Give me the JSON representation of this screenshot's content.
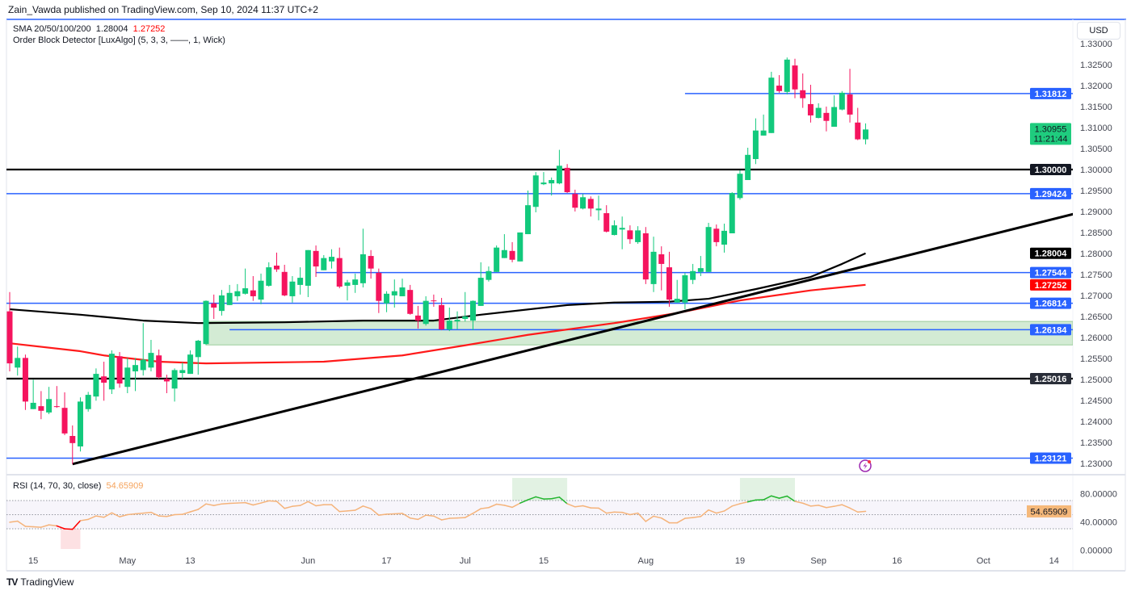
{
  "header": {
    "published": "Zain_Vawda published on TradingView.com, Sep 10, 2024 11:37 UTC+2"
  },
  "legend": {
    "sma_label": "SMA 20/50/100/200",
    "sma_value_1": "1.28004",
    "sma_value_2": "1.27252",
    "order_block_label": "Order Block Detector [LuxAlgo] (5, 3, 3, ——, 1, Wick)"
  },
  "price_axis": {
    "currency": "USD"
  },
  "rsi": {
    "label": "RSI (14, 70, 30, close)",
    "value": "54.65909"
  },
  "footer": {
    "brand": "TradingView"
  },
  "colors": {
    "up": "#12c97c",
    "down": "#f5145e",
    "level_blue": "#2962ff",
    "level_black": "#000000",
    "sma_black": "#000000",
    "sma_red": "#ff1a1a",
    "order_block": "#a5d6a7",
    "rsi_line": "#f5b37a",
    "rsi_overbought": "#22b52e",
    "rsi_oversold": "#ff0000"
  },
  "chart_data": {
    "type": "candlestick",
    "y_ticks": [
      "1.33000",
      "1.32500",
      "1.32000",
      "1.31500",
      "1.31000",
      "1.30500",
      "1.30000",
      "1.29500",
      "1.29000",
      "1.28500",
      "1.28000",
      "1.27500",
      "1.27000",
      "1.26500",
      "1.26000",
      "1.25500",
      "1.25000",
      "1.24500",
      "1.24000",
      "1.23500",
      "1.23000"
    ],
    "x_ticks": [
      {
        "bar": 3,
        "label": "15"
      },
      {
        "bar": 15,
        "label": "May"
      },
      {
        "bar": 23,
        "label": "13"
      },
      {
        "bar": 38,
        "label": "Jun"
      },
      {
        "bar": 48,
        "label": "17"
      },
      {
        "bar": 58,
        "label": "Jul"
      },
      {
        "bar": 68,
        "label": "15"
      },
      {
        "bar": 81,
        "label": "Aug"
      },
      {
        "bar": 93,
        "label": "19"
      },
      {
        "bar": 103,
        "label": "Sep"
      },
      {
        "bar": 113,
        "label": "16"
      },
      {
        "bar": 124,
        "label": "Oct"
      },
      {
        "bar": 133,
        "label": "14"
      }
    ],
    "candles_ohlc": [
      [
        1.2662,
        1.2708,
        1.2519,
        1.2538
      ],
      [
        1.2528,
        1.2578,
        1.2509,
        1.2551
      ],
      [
        1.2551,
        1.2559,
        1.2427,
        1.2447
      ],
      [
        1.2429,
        1.2499,
        1.2429,
        1.2444
      ],
      [
        1.2436,
        1.2472,
        1.2405,
        1.2425
      ],
      [
        1.2421,
        1.2482,
        1.2417,
        1.2453
      ],
      [
        1.2436,
        1.2484,
        1.2432,
        1.2434
      ],
      [
        1.2432,
        1.2469,
        1.2367,
        1.2371
      ],
      [
        1.2365,
        1.239,
        1.2298,
        1.2348
      ],
      [
        1.234,
        1.2457,
        1.2328,
        1.2447
      ],
      [
        1.2429,
        1.247,
        1.2423,
        1.2463
      ],
      [
        1.2459,
        1.2526,
        1.2449,
        1.2513
      ],
      [
        1.2507,
        1.2542,
        1.2449,
        1.2492
      ],
      [
        1.2476,
        1.2569,
        1.2465,
        1.2561
      ],
      [
        1.2555,
        1.2565,
        1.248,
        1.249
      ],
      [
        1.2482,
        1.2551,
        1.2467,
        1.2528
      ],
      [
        1.2519,
        1.2551,
        1.2472,
        1.2534
      ],
      [
        1.2522,
        1.2634,
        1.2509,
        1.2547
      ],
      [
        1.2528,
        1.2594,
        1.2519,
        1.2563
      ],
      [
        1.2557,
        1.2571,
        1.2501,
        1.2505
      ],
      [
        1.2501,
        1.2511,
        1.2467,
        1.2495
      ],
      [
        1.2478,
        1.2526,
        1.2447,
        1.2522
      ],
      [
        1.2515,
        1.254,
        1.2501,
        1.2522
      ],
      [
        1.2513,
        1.2569,
        1.2513,
        1.2559
      ],
      [
        1.2553,
        1.2594,
        1.2511,
        1.2592
      ],
      [
        1.2584,
        1.2688,
        1.2582,
        1.2687
      ],
      [
        1.2681,
        1.2702,
        1.2644,
        1.2671
      ],
      [
        1.2663,
        1.2713,
        1.2652,
        1.27
      ],
      [
        1.2677,
        1.2725,
        1.2677,
        1.2706
      ],
      [
        1.2698,
        1.2727,
        1.2687,
        1.271
      ],
      [
        1.2704,
        1.2764,
        1.2702,
        1.2717
      ],
      [
        1.2712,
        1.2746,
        1.2687,
        1.2698
      ],
      [
        1.269,
        1.2752,
        1.2679,
        1.2735
      ],
      [
        1.2723,
        1.2779,
        1.2721,
        1.2767
      ],
      [
        1.2771,
        1.2802,
        1.2756,
        1.2762
      ],
      [
        1.2756,
        1.2773,
        1.2698,
        1.27
      ],
      [
        1.2698,
        1.2746,
        1.2683,
        1.2733
      ],
      [
        1.2725,
        1.2767,
        1.2702,
        1.2742
      ],
      [
        1.2723,
        1.2808,
        1.2696,
        1.2808
      ],
      [
        1.2806,
        1.2819,
        1.2744,
        1.2769
      ],
      [
        1.276,
        1.2796,
        1.276,
        1.2789
      ],
      [
        1.2781,
        1.281,
        1.2764,
        1.2792
      ],
      [
        1.2789,
        1.2814,
        1.2717,
        1.2721
      ],
      [
        1.2723,
        1.2737,
        1.2688,
        1.2731
      ],
      [
        1.2725,
        1.2752,
        1.2706,
        1.2738
      ],
      [
        1.2729,
        1.2859,
        1.2719,
        1.2798
      ],
      [
        1.2794,
        1.2808,
        1.274,
        1.2764
      ],
      [
        1.2754,
        1.2764,
        1.2658,
        1.2687
      ],
      [
        1.2681,
        1.271,
        1.266,
        1.2704
      ],
      [
        1.27,
        1.2738,
        1.2671,
        1.271
      ],
      [
        1.2698,
        1.274,
        1.2698,
        1.2719
      ],
      [
        1.2713,
        1.2725,
        1.2654,
        1.2656
      ],
      [
        1.2652,
        1.2675,
        1.2621,
        1.264
      ],
      [
        1.2632,
        1.2698,
        1.2628,
        1.2687
      ],
      [
        1.2688,
        1.2702,
        1.2673,
        1.2687
      ],
      [
        1.2677,
        1.2694,
        1.2617,
        1.2619
      ],
      [
        1.2619,
        1.2671,
        1.2615,
        1.264
      ],
      [
        1.2638,
        1.2662,
        1.2619,
        1.2642
      ],
      [
        1.2644,
        1.2708,
        1.2638,
        1.265
      ],
      [
        1.264,
        1.2688,
        1.2617,
        1.2687
      ],
      [
        1.2675,
        1.2779,
        1.2675,
        1.2742
      ],
      [
        1.2737,
        1.2769,
        1.2733,
        1.2758
      ],
      [
        1.2756,
        1.2819,
        1.2756,
        1.2814
      ],
      [
        1.2789,
        1.2846,
        1.2789,
        1.2808
      ],
      [
        1.2806,
        1.2827,
        1.2779,
        1.2785
      ],
      [
        1.2781,
        1.285,
        1.2781,
        1.285
      ],
      [
        1.2846,
        1.295,
        1.2846,
        1.2915
      ],
      [
        1.2911,
        1.2994,
        1.2898,
        1.2986
      ],
      [
        1.2965,
        1.2994,
        1.2963,
        1.2969
      ],
      [
        1.2967,
        1.2981,
        1.2938,
        1.2975
      ],
      [
        1.2967,
        1.3047,
        1.2965,
        1.3009
      ],
      [
        1.3004,
        1.3013,
        1.2944,
        1.2946
      ],
      [
        1.2942,
        1.2952,
        1.29,
        1.2909
      ],
      [
        1.2907,
        1.2942,
        1.2905,
        1.2934
      ],
      [
        1.293,
        1.2936,
        1.2888,
        1.2907
      ],
      [
        1.2903,
        1.2938,
        1.2879,
        1.2907
      ],
      [
        1.2896,
        1.2915,
        1.285,
        1.2852
      ],
      [
        1.2844,
        1.2879,
        1.2843,
        1.2867
      ],
      [
        1.2857,
        1.2888,
        1.281,
        1.2861
      ],
      [
        1.2855,
        1.2867,
        1.2823,
        1.2834
      ],
      [
        1.2827,
        1.2865,
        1.2823,
        1.2855
      ],
      [
        1.2848,
        1.2863,
        1.2727,
        1.2738
      ],
      [
        1.2727,
        1.284,
        1.2708,
        1.2804
      ],
      [
        1.2798,
        1.2817,
        1.2712,
        1.2775
      ],
      [
        1.2767,
        1.2804,
        1.2673,
        1.269
      ],
      [
        1.2683,
        1.2737,
        1.2683,
        1.2692
      ],
      [
        1.2683,
        1.2754,
        1.2667,
        1.2748
      ],
      [
        1.2737,
        1.2775,
        1.2727,
        1.2758
      ],
      [
        1.2756,
        1.2794,
        1.2746,
        1.2765
      ],
      [
        1.2756,
        1.2873,
        1.2756,
        1.2863
      ],
      [
        1.2859,
        1.2869,
        1.2817,
        1.2827
      ],
      [
        1.2821,
        1.2871,
        1.2802,
        1.2854
      ],
      [
        1.2848,
        1.2946,
        1.2848,
        1.2944
      ],
      [
        1.2932,
        1.2998,
        1.2928,
        1.299
      ],
      [
        1.2975,
        1.3052,
        1.2975,
        1.3035
      ],
      [
        1.3025,
        1.3122,
        1.3013,
        1.3093
      ],
      [
        1.3081,
        1.3131,
        1.3081,
        1.3093
      ],
      [
        1.3087,
        1.3233,
        1.3087,
        1.3219
      ],
      [
        1.32,
        1.3225,
        1.3183,
        1.3187
      ],
      [
        1.3185,
        1.3267,
        1.3179,
        1.3262
      ],
      [
        1.3248,
        1.3264,
        1.317,
        1.3191
      ],
      [
        1.3189,
        1.3229,
        1.3147,
        1.317
      ],
      [
        1.3156,
        1.3202,
        1.3112,
        1.3129
      ],
      [
        1.3123,
        1.3158,
        1.3122,
        1.3147
      ],
      [
        1.3135,
        1.315,
        1.3091,
        1.3116
      ],
      [
        1.3102,
        1.3177,
        1.3102,
        1.3149
      ],
      [
        1.3143,
        1.3187,
        1.3141,
        1.3183
      ],
      [
        1.3179,
        1.324,
        1.3112,
        1.3131
      ],
      [
        1.3112,
        1.3147,
        1.307,
        1.3072
      ],
      [
        1.3072,
        1.311,
        1.306,
        1.30955
      ]
    ],
    "sma_black": [
      [
        0,
        1.2667
      ],
      [
        9,
        1.2654
      ],
      [
        17,
        1.264
      ],
      [
        24,
        1.2634
      ],
      [
        35,
        1.2636
      ],
      [
        45,
        1.264
      ],
      [
        54,
        1.264
      ],
      [
        60,
        1.2654
      ],
      [
        71,
        1.2677
      ],
      [
        77,
        1.2683
      ],
      [
        84,
        1.2685
      ],
      [
        89,
        1.2692
      ],
      [
        95,
        1.2715
      ],
      [
        102,
        1.2744
      ],
      [
        106,
        1.2775
      ],
      [
        109,
        1.28004
      ]
    ],
    "sma_red": [
      [
        0,
        1.2586
      ],
      [
        9,
        1.2567
      ],
      [
        12,
        1.2557
      ],
      [
        19,
        1.2542
      ],
      [
        25,
        1.2538
      ],
      [
        40,
        1.2542
      ],
      [
        50,
        1.2557
      ],
      [
        58,
        1.2581
      ],
      [
        66,
        1.2606
      ],
      [
        77,
        1.2634
      ],
      [
        85,
        1.2658
      ],
      [
        93,
        1.2688
      ],
      [
        102,
        1.2712
      ],
      [
        109,
        1.27252
      ]
    ],
    "trendline": [
      [
        8,
        1.2298
      ],
      [
        135.5,
        1.2894
      ]
    ],
    "levels": [
      {
        "price": 1.31812,
        "from_bar": 86,
        "kind": "blue"
      },
      {
        "price": 1.3,
        "from_bar": -1,
        "kind": "black"
      },
      {
        "price": 1.29424,
        "from_bar": -1,
        "kind": "blue"
      },
      {
        "price": 1.27544,
        "from_bar": 39,
        "kind": "blue"
      },
      {
        "price": 1.26814,
        "from_bar": -1,
        "kind": "blue"
      },
      {
        "price": 1.26184,
        "from_bar": 28,
        "kind": "blue"
      },
      {
        "price": 1.25016,
        "from_bar": -1,
        "kind": "black"
      },
      {
        "price": 1.23121,
        "from_bar": -1,
        "kind": "blue"
      }
    ],
    "order_block": {
      "from_bar": 25,
      "top": 1.2638,
      "bottom": 1.2582
    },
    "price_labels": [
      {
        "text": "1.31812",
        "bg": "#2962ff",
        "fg": "#ffffff"
      },
      {
        "text": "1.30000",
        "bg": "#131722",
        "fg": "#ffffff"
      },
      {
        "text": "1.29424",
        "bg": "#2962ff",
        "fg": "#ffffff"
      },
      {
        "text": "1.28004",
        "bg": "#000000",
        "fg": "#ffffff"
      },
      {
        "text": "1.27544",
        "bg": "#2962ff",
        "fg": "#ffffff"
      },
      {
        "text": "1.27252",
        "bg": "#ff0000",
        "fg": "#ffffff"
      },
      {
        "text": "1.26814",
        "bg": "#2962ff",
        "fg": "#ffffff"
      },
      {
        "text": "1.26184",
        "bg": "#2962ff",
        "fg": "#ffffff"
      },
      {
        "text": "1.25016",
        "bg": "#2a2e39",
        "fg": "#ffffff"
      },
      {
        "text": "1.23121",
        "bg": "#2962ff",
        "fg": "#ffffff"
      }
    ],
    "last_price": {
      "text": "1.30955",
      "countdown": "11:21:44",
      "bg": "#1fcc7e",
      "fg": "#131722"
    },
    "rsi_ticks": [
      "80.00000",
      "40.00000",
      "0.00000"
    ],
    "rsi_bands": [
      70,
      50,
      30
    ],
    "rsi_values": [
      39.3,
      40.8,
      33.4,
      32.8,
      32.2,
      35.6,
      34.1,
      30.0,
      29.3,
      41.5,
      43.3,
      48.2,
      46.3,
      52.6,
      47.0,
      50.0,
      51.1,
      52.2,
      53.3,
      48.2,
      47.4,
      50.0,
      50.4,
      54.0,
      57.4,
      65.2,
      63.0,
      65.2,
      66.0,
      66.5,
      67.0,
      63.7,
      66.5,
      69.6,
      68.9,
      58.9,
      61.8,
      63.0,
      68.5,
      62.6,
      64.1,
      64.1,
      54.4,
      55.3,
      56.3,
      62.2,
      58.5,
      49.3,
      50.7,
      51.1,
      51.9,
      45.2,
      43.3,
      49.3,
      48.0,
      42.6,
      44.8,
      45.3,
      45.9,
      51.9,
      58.5,
      60.0,
      64.8,
      63.3,
      60.4,
      66.3,
      71.1,
      75.2,
      72.2,
      72.6,
      74.8,
      65.5,
      61.1,
      62.6,
      59.6,
      59.3,
      52.2,
      53.7,
      53.3,
      50.0,
      52.2,
      40.4,
      47.8,
      45.2,
      38.5,
      38.5,
      44.8,
      45.9,
      47.4,
      56.7,
      52.2,
      55.2,
      62.2,
      65.5,
      68.1,
      70.7,
      71.1,
      76.6,
      73.3,
      76.3,
      68.9,
      66.3,
      62.2,
      63.3,
      60.0,
      61.8,
      64.1,
      59.3,
      53.7,
      54.66
    ]
  }
}
